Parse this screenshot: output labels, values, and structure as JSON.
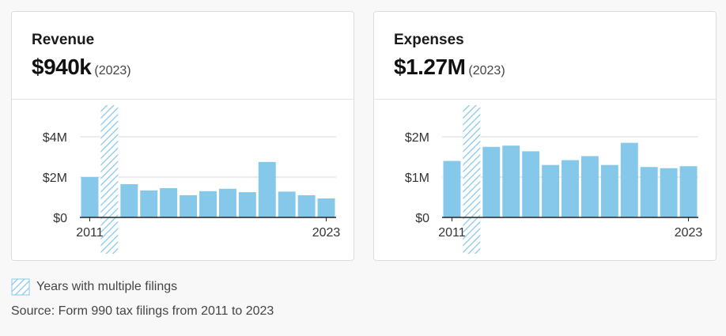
{
  "colors": {
    "bar": "#86c8ea",
    "hatch": "#86c8ea",
    "grid": "#d9d9d9",
    "axis": "#222222"
  },
  "charts": [
    {
      "label": "Revenue",
      "amount": "$940k",
      "amount_year": "(2023)"
    },
    {
      "label": "Expenses",
      "amount": "$1.27M",
      "amount_year": "(2023)"
    }
  ],
  "chart_data": [
    {
      "type": "bar",
      "title": "Revenue",
      "x": [
        2011,
        2012,
        2013,
        2014,
        2015,
        2016,
        2017,
        2018,
        2019,
        2020,
        2021,
        2022,
        2023
      ],
      "values": [
        2000000,
        null,
        1650000,
        1340000,
        1450000,
        1100000,
        1300000,
        1420000,
        1250000,
        2750000,
        1280000,
        1100000,
        940000
      ],
      "multiple_filings_years": [
        2012
      ],
      "ylim": [
        0,
        4000000
      ],
      "y_ticks": [
        0,
        2000000,
        4000000
      ],
      "y_tick_labels": [
        "$0",
        "$2M",
        "$4M"
      ],
      "x_tick_labels": [
        "2011",
        "2023"
      ],
      "grid": true
    },
    {
      "type": "bar",
      "title": "Expenses",
      "x": [
        2011,
        2012,
        2013,
        2014,
        2015,
        2016,
        2017,
        2018,
        2019,
        2020,
        2021,
        2022,
        2023
      ],
      "values": [
        1400000,
        null,
        1750000,
        1780000,
        1640000,
        1300000,
        1420000,
        1520000,
        1300000,
        1850000,
        1250000,
        1220000,
        1270000
      ],
      "multiple_filings_years": [
        2012
      ],
      "ylim": [
        0,
        2000000
      ],
      "y_ticks": [
        0,
        1000000,
        2000000
      ],
      "y_tick_labels": [
        "$0",
        "$1M",
        "$2M"
      ],
      "x_tick_labels": [
        "2011",
        "2023"
      ],
      "grid": true
    }
  ],
  "legend": {
    "label": "Years with multiple filings"
  },
  "source": "Source: Form 990 tax filings from 2011 to 2023"
}
